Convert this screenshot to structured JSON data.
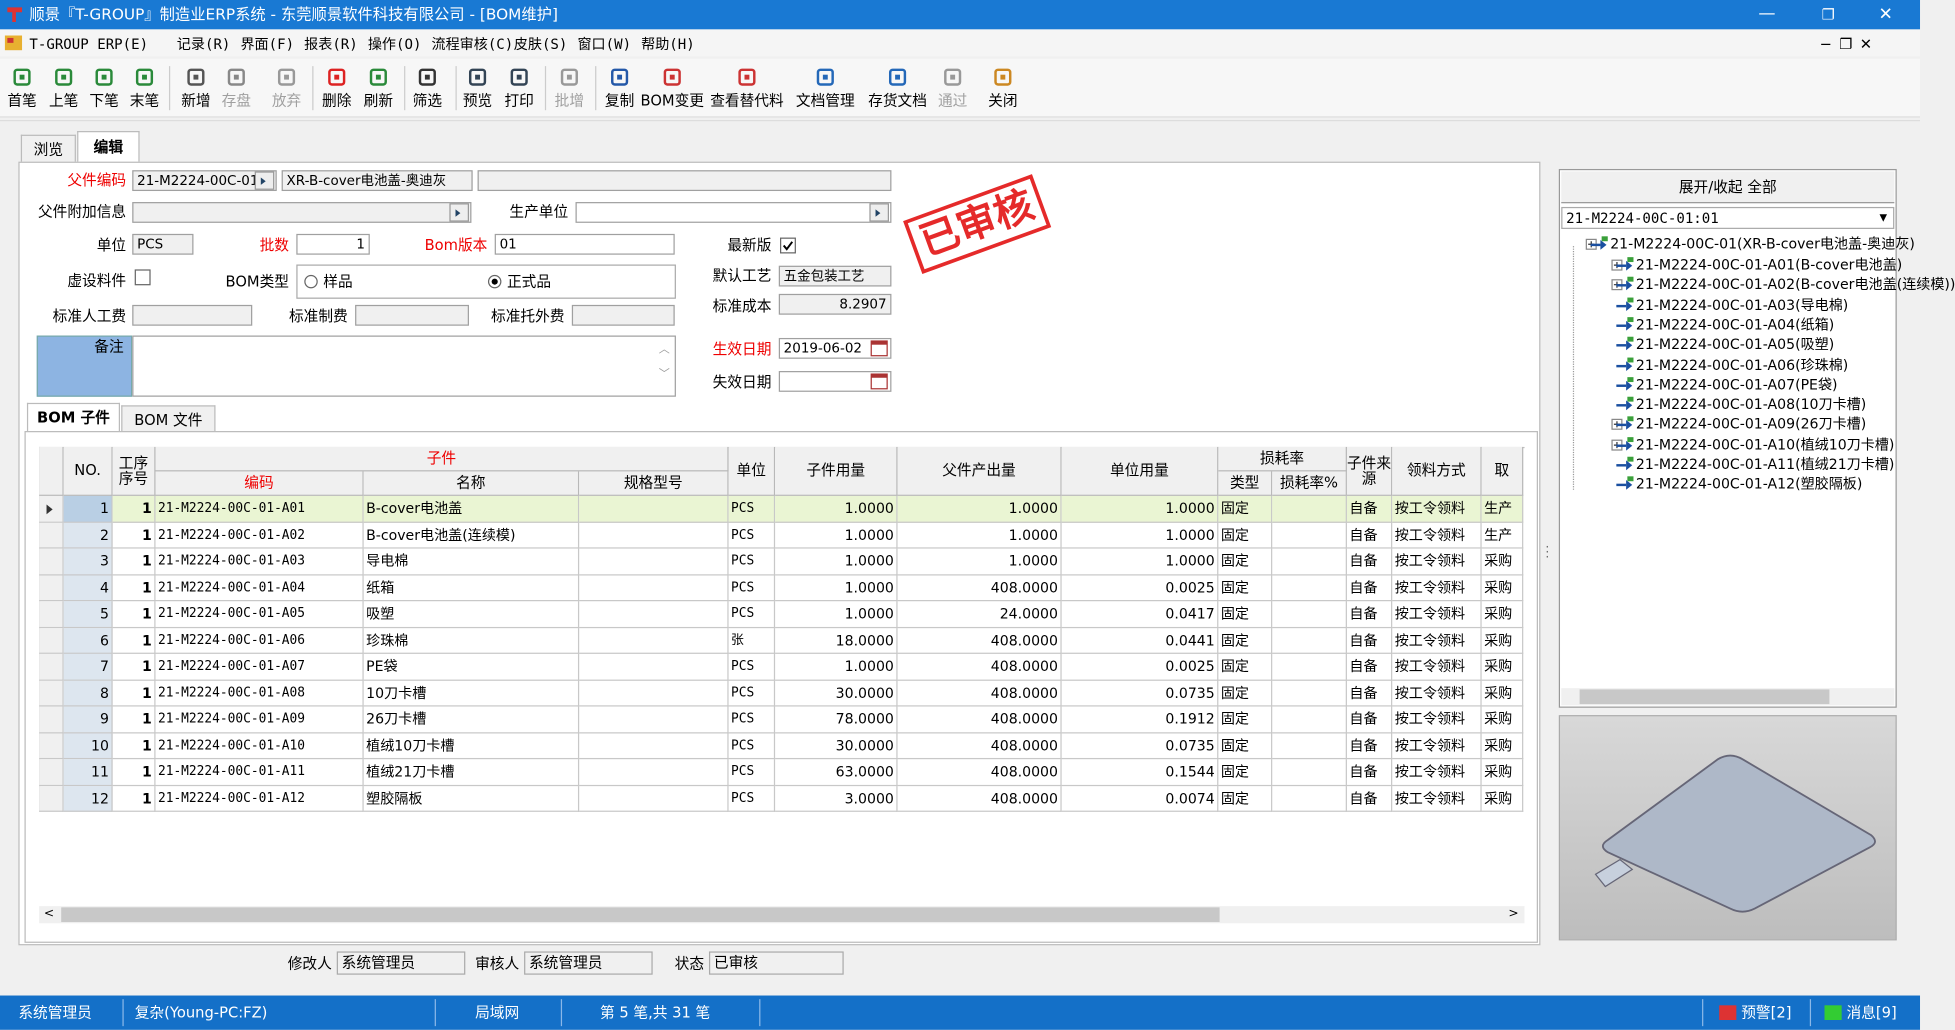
{
  "window": {
    "title": "顺景『T-GROUP』制造业ERP系统 - 东莞顺景软件科技有限公司 - [BOM维护]"
  },
  "menu": [
    "T-GROUP ERP(E)",
    "记录(R)",
    "界面(F)",
    "报表(R)",
    "操作(O)",
    "流程审核(C)",
    "皮肤(S)",
    "窗口(W)",
    "帮助(H)"
  ],
  "toolbar": [
    "首笔",
    "上笔",
    "下笔",
    "末笔",
    "新增",
    "存盘",
    "放弃",
    "删除",
    "刷新",
    "筛选",
    "预览",
    "打印",
    "批增",
    "复制",
    "BOM变更",
    "查看替代料",
    "文档管理",
    "存货文档",
    "通过",
    "关闭"
  ],
  "tabs": [
    "浏览",
    "编辑"
  ],
  "form": {
    "parent_code": {
      "label": "父件编码",
      "value": "21-M2224-00C-01"
    },
    "parent_name": {
      "value": "XR-B-cover电池盖-奥迪灰"
    },
    "extra_info": {
      "label": "父件附加信息"
    },
    "production_unit": {
      "label": "生产单位"
    },
    "unit": {
      "label": "单位",
      "value": "PCS"
    },
    "batch": {
      "label": "批数",
      "value": "1"
    },
    "bom_version": {
      "label": "Bom版本",
      "value": "01"
    },
    "latest": {
      "label": "最新版",
      "checked": true
    },
    "dummy": {
      "label": "虚设料件",
      "checked": false
    },
    "bom_type": {
      "label": "BOM类型",
      "options": [
        "样品",
        "正式品"
      ],
      "selected": 1
    },
    "default_process": {
      "label": "默认工艺",
      "value": "五金包装工艺"
    },
    "standard_cost": {
      "label": "标准成本",
      "value": "8.2907"
    },
    "labor": {
      "label": "标准人工费"
    },
    "overhead": {
      "label": "标准制费"
    },
    "outsource": {
      "label": "标准托外费"
    },
    "remark": {
      "label": "备注"
    },
    "effective_date": {
      "label": "生效日期",
      "value": "2019-06-02"
    },
    "expiry_date": {
      "label": "失效日期"
    }
  },
  "stamp": "已审核",
  "sub_tabs": [
    "BOM 子件",
    "BOM 文件"
  ],
  "table": {
    "header": {
      "group_part": "子件",
      "group_loss": "损耗率",
      "no": "NO.",
      "seq": "工序序号",
      "code": "编码",
      "name": "名称",
      "spec": "规格型号",
      "unit": "单位",
      "qty": "子件用量",
      "parent_qty": "父件产出量",
      "unit_qty": "单位用量",
      "type": "类型",
      "loss": "损耗率%",
      "source": "子件来源",
      "method": "领料方式",
      "take": "取"
    },
    "rows": [
      {
        "no": "1",
        "seq": "1",
        "code": "21-M2224-00C-01-A01",
        "name": "B-cover电池盖",
        "unit": "PCS",
        "qty": "1.0000",
        "parent_qty": "1.0000",
        "unit_qty": "1.0000",
        "type": "固定",
        "source": "自备",
        "method": "按工令领料",
        "take": "生产"
      },
      {
        "no": "2",
        "seq": "1",
        "code": "21-M2224-00C-01-A02",
        "name": "B-cover电池盖(连续模)",
        "unit": "PCS",
        "qty": "1.0000",
        "parent_qty": "1.0000",
        "unit_qty": "1.0000",
        "type": "固定",
        "source": "自备",
        "method": "按工令领料",
        "take": "生产"
      },
      {
        "no": "3",
        "seq": "1",
        "code": "21-M2224-00C-01-A03",
        "name": "导电棉",
        "unit": "PCS",
        "qty": "1.0000",
        "parent_qty": "1.0000",
        "unit_qty": "1.0000",
        "type": "固定",
        "source": "自备",
        "method": "按工令领料",
        "take": "采购"
      },
      {
        "no": "4",
        "seq": "1",
        "code": "21-M2224-00C-01-A04",
        "name": "纸箱",
        "unit": "PCS",
        "qty": "1.0000",
        "parent_qty": "408.0000",
        "unit_qty": "0.0025",
        "type": "固定",
        "source": "自备",
        "method": "按工令领料",
        "take": "采购"
      },
      {
        "no": "5",
        "seq": "1",
        "code": "21-M2224-00C-01-A05",
        "name": "吸塑",
        "unit": "PCS",
        "qty": "1.0000",
        "parent_qty": "24.0000",
        "unit_qty": "0.0417",
        "type": "固定",
        "source": "自备",
        "method": "按工令领料",
        "take": "采购"
      },
      {
        "no": "6",
        "seq": "1",
        "code": "21-M2224-00C-01-A06",
        "name": "珍珠棉",
        "unit": "张",
        "qty": "18.0000",
        "parent_qty": "408.0000",
        "unit_qty": "0.0441",
        "type": "固定",
        "source": "自备",
        "method": "按工令领料",
        "take": "采购"
      },
      {
        "no": "7",
        "seq": "1",
        "code": "21-M2224-00C-01-A07",
        "name": "PE袋",
        "unit": "PCS",
        "qty": "1.0000",
        "parent_qty": "408.0000",
        "unit_qty": "0.0025",
        "type": "固定",
        "source": "自备",
        "method": "按工令领料",
        "take": "采购"
      },
      {
        "no": "8",
        "seq": "1",
        "code": "21-M2224-00C-01-A08",
        "name": "10刀卡槽",
        "unit": "PCS",
        "qty": "30.0000",
        "parent_qty": "408.0000",
        "unit_qty": "0.0735",
        "type": "固定",
        "source": "自备",
        "method": "按工令领料",
        "take": "采购"
      },
      {
        "no": "9",
        "seq": "1",
        "code": "21-M2224-00C-01-A09",
        "name": "26刀卡槽",
        "unit": "PCS",
        "qty": "78.0000",
        "parent_qty": "408.0000",
        "unit_qty": "0.1912",
        "type": "固定",
        "source": "自备",
        "method": "按工令领料",
        "take": "采购"
      },
      {
        "no": "10",
        "seq": "1",
        "code": "21-M2224-00C-01-A10",
        "name": "植绒10刀卡槽",
        "unit": "PCS",
        "qty": "30.0000",
        "parent_qty": "408.0000",
        "unit_qty": "0.0735",
        "type": "固定",
        "source": "自备",
        "method": "按工令领料",
        "take": "采购"
      },
      {
        "no": "11",
        "seq": "1",
        "code": "21-M2224-00C-01-A11",
        "name": "植绒21刀卡槽",
        "unit": "PCS",
        "qty": "63.0000",
        "parent_qty": "408.0000",
        "unit_qty": "0.1544",
        "type": "固定",
        "source": "自备",
        "method": "按工令领料",
        "take": "采购"
      },
      {
        "no": "12",
        "seq": "1",
        "code": "21-M2224-00C-01-A12",
        "name": "塑胶隔板",
        "unit": "PCS",
        "qty": "3.0000",
        "parent_qty": "408.0000",
        "unit_qty": "0.0074",
        "type": "固定",
        "source": "自备",
        "method": "按工令领料",
        "take": "采购"
      }
    ]
  },
  "tree": {
    "header": "展开/收起 全部",
    "selector": "21-M2224-00C-01:01",
    "root": "21-M2224-00C-01(XR-B-cover电池盖-奥迪灰)",
    "nodes": [
      {
        "label": "21-M2224-00C-01-A01(B-cover电池盖)",
        "expandable": true
      },
      {
        "label": "21-M2224-00C-01-A02(B-cover电池盖(连续模))",
        "expandable": true
      },
      {
        "label": "21-M2224-00C-01-A03(导电棉)",
        "expandable": false
      },
      {
        "label": "21-M2224-00C-01-A04(纸箱)",
        "expandable": false
      },
      {
        "label": "21-M2224-00C-01-A05(吸塑)",
        "expandable": false
      },
      {
        "label": "21-M2224-00C-01-A06(珍珠棉)",
        "expandable": false
      },
      {
        "label": "21-M2224-00C-01-A07(PE袋)",
        "expandable": false
      },
      {
        "label": "21-M2224-00C-01-A08(10刀卡槽)",
        "expandable": false
      },
      {
        "label": "21-M2224-00C-01-A09(26刀卡槽)",
        "expandable": true
      },
      {
        "label": "21-M2224-00C-01-A10(植绒10刀卡槽)",
        "expandable": true
      },
      {
        "label": "21-M2224-00C-01-A11(植绒21刀卡槽)",
        "expandable": false
      },
      {
        "label": "21-M2224-00C-01-A12(塑胶隔板)",
        "expandable": false
      }
    ]
  },
  "footer": {
    "modifier": {
      "label": "修改人",
      "value": "系统管理员"
    },
    "auditor": {
      "label": "审核人",
      "value": "系统管理员"
    },
    "status": {
      "label": "状态",
      "value": "已审核"
    }
  },
  "status_bar": {
    "user": "系统管理员",
    "host": "复杂(Young-PC:FZ)",
    "network": "局域网",
    "record": "第 5 笔,共 31 笔",
    "alert": "预警[2]",
    "message": "消息[9]"
  }
}
